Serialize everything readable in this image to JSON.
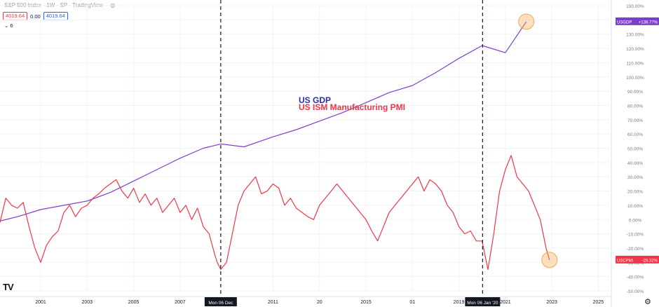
{
  "header": {
    "title": "S&P 500 Index · 1W · SP · TradingView",
    "price_red": "4019.64",
    "change": "0.00",
    "price_blue": "4019.64",
    "collapse": "⌄ 6",
    "eye_icon": "eye-icon"
  },
  "colors": {
    "gdp": "#7e3fc8",
    "pmi": "#f23645",
    "annotation_gdp": "#2c2cb0",
    "circle": "#f7a84a"
  },
  "chart_data": {
    "type": "line",
    "title": "",
    "xlabel": "",
    "ylabel": "",
    "x_ticks": [
      "2001",
      "2003",
      "2005",
      "2007",
      "2011",
      "20",
      "2015",
      "01",
      "2019",
      "2021",
      "2023",
      "2025"
    ],
    "y_ticks": [
      "150.00%",
      "140.00%",
      "130.00%",
      "120.00%",
      "110.00%",
      "100.00%",
      "90.00%",
      "80.00%",
      "70.00%",
      "60.00%",
      "50.00%",
      "40.00%",
      "30.00%",
      "20.00%",
      "10.00%",
      "0.00%",
      "-10.00%",
      "-20.00%",
      "-30.00%",
      "-40.00%",
      "-50.00%"
    ],
    "ylim": [
      -50,
      150
    ],
    "xlim": [
      1999.25,
      2025.5
    ],
    "grid": true,
    "vlines": [
      {
        "x": 2008.75,
        "label": "Mon 06 Dec"
      },
      {
        "x": 2020.02,
        "label": "Mon 06 Jan '20"
      }
    ],
    "annotations": [
      {
        "text": "US GDP",
        "series": 0
      },
      {
        "text": "US ISM Manufacturing PMI",
        "series": 1
      }
    ],
    "series": [
      {
        "name": "USGDP",
        "badge": "+138.77%",
        "x": [
          1999.25,
          2000.0,
          2001.0,
          2002.0,
          2003.0,
          2004.0,
          2005.0,
          2006.0,
          2007.0,
          2008.0,
          2008.75,
          2009.75,
          2011.0,
          2012.0,
          2013.0,
          2014.0,
          2015.0,
          2016.0,
          2017.0,
          2018.0,
          2019.0,
          2020.0,
          2021.0,
          2021.9
        ],
        "values": [
          -1.0,
          2.0,
          7.0,
          10.0,
          13.0,
          19.0,
          27.0,
          35.0,
          43.0,
          50.0,
          53.0,
          51.0,
          58.0,
          63.0,
          69.0,
          75.0,
          82.0,
          89.0,
          94.0,
          103.0,
          113.0,
          122.0,
          117.0,
          138.77
        ]
      },
      {
        "name": "USCPMI",
        "badge": "-28.32%",
        "x": [
          1999.25,
          1999.5,
          1999.75,
          2000.0,
          2000.25,
          2000.5,
          2000.75,
          2001.0,
          2001.25,
          2001.5,
          2001.75,
          2002.0,
          2002.25,
          2002.5,
          2002.75,
          2003.0,
          2003.25,
          2003.5,
          2003.75,
          2004.0,
          2004.25,
          2004.5,
          2004.75,
          2005.0,
          2005.25,
          2005.5,
          2005.75,
          2006.0,
          2006.25,
          2006.5,
          2006.75,
          2007.0,
          2007.25,
          2007.5,
          2007.75,
          2008.0,
          2008.25,
          2008.5,
          2008.6,
          2008.75,
          2009.0,
          2009.25,
          2009.5,
          2009.75,
          2010.0,
          2010.25,
          2010.5,
          2010.75,
          2011.0,
          2011.25,
          2011.5,
          2011.75,
          2012.0,
          2012.25,
          2012.5,
          2012.75,
          2013.0,
          2013.25,
          2013.5,
          2013.75,
          2014.0,
          2014.25,
          2014.5,
          2014.75,
          2015.0,
          2015.25,
          2015.5,
          2015.75,
          2016.0,
          2016.25,
          2016.5,
          2016.75,
          2017.0,
          2017.25,
          2017.5,
          2017.75,
          2018.0,
          2018.25,
          2018.5,
          2018.75,
          2019.0,
          2019.25,
          2019.5,
          2019.75,
          2020.0,
          2020.25,
          2020.5,
          2020.75,
          2021.0,
          2021.25,
          2021.5,
          2021.75,
          2022.0,
          2022.25,
          2022.5,
          2022.75,
          2022.9
        ],
        "values": [
          -2,
          15,
          10,
          8,
          12,
          -5,
          -20,
          -30,
          -18,
          -12,
          -8,
          5,
          10,
          2,
          8,
          10,
          15,
          18,
          22,
          25,
          28,
          20,
          15,
          22,
          12,
          18,
          10,
          15,
          5,
          10,
          15,
          5,
          10,
          0,
          8,
          -5,
          -10,
          -25,
          -30,
          -35,
          -30,
          -10,
          10,
          20,
          25,
          30,
          18,
          20,
          25,
          22,
          10,
          15,
          8,
          5,
          2,
          0,
          10,
          15,
          20,
          25,
          20,
          15,
          10,
          5,
          0,
          -8,
          -15,
          -5,
          5,
          10,
          15,
          20,
          25,
          30,
          20,
          28,
          25,
          20,
          10,
          5,
          -5,
          -10,
          -8,
          -15,
          -15,
          -35,
          -10,
          20,
          35,
          45,
          30,
          25,
          20,
          10,
          0,
          -20,
          -28.32
        ]
      }
    ]
  }
}
